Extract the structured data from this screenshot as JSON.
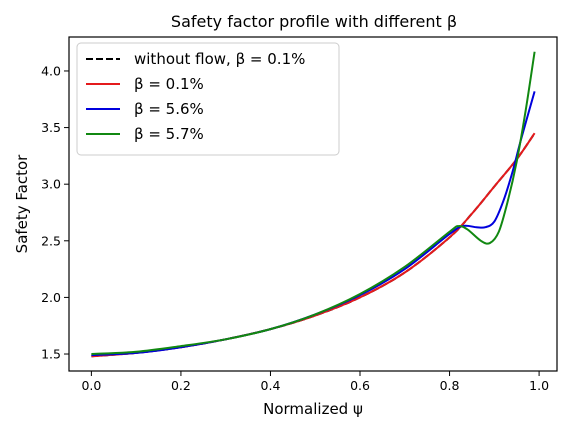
{
  "chart_data": {
    "type": "line",
    "title": "Safety factor profile with different β",
    "xlabel": "Normalized ψ",
    "ylabel": "Safety Factor",
    "xlim": [
      -0.05,
      1.04
    ],
    "ylim": [
      1.35,
      4.3
    ],
    "xticks": [
      0.0,
      0.2,
      0.4,
      0.6,
      0.8,
      1.0
    ],
    "xtick_labels": [
      "0.0",
      "0.2",
      "0.4",
      "0.6",
      "0.8",
      "1.0"
    ],
    "yticks": [
      1.5,
      2.0,
      2.5,
      3.0,
      3.5,
      4.0
    ],
    "ytick_labels": [
      "1.5",
      "2.0",
      "2.5",
      "3.0",
      "3.5",
      "4.0"
    ],
    "grid": false,
    "legend_position": "top-left",
    "series": [
      {
        "name": "without flow, β = 0.1%",
        "color": "#000000",
        "style": "dashed",
        "x": [
          0.0,
          0.1,
          0.2,
          0.3,
          0.4,
          0.5,
          0.6,
          0.7,
          0.8,
          0.85,
          0.9,
          0.95,
          0.99
        ],
        "y": [
          1.48,
          1.51,
          1.56,
          1.63,
          1.72,
          1.84,
          2.0,
          2.22,
          2.53,
          2.74,
          2.98,
          3.22,
          3.45
        ]
      },
      {
        "name": "β = 0.1%",
        "color": "#e41a1c",
        "style": "solid",
        "x": [
          0.0,
          0.1,
          0.2,
          0.3,
          0.4,
          0.5,
          0.6,
          0.7,
          0.8,
          0.85,
          0.9,
          0.95,
          0.99
        ],
        "y": [
          1.48,
          1.51,
          1.56,
          1.63,
          1.72,
          1.84,
          2.0,
          2.22,
          2.53,
          2.74,
          2.98,
          3.22,
          3.45
        ]
      },
      {
        "name": "β = 5.6%",
        "color": "#0000dd",
        "style": "solid",
        "x": [
          0.0,
          0.1,
          0.2,
          0.3,
          0.4,
          0.5,
          0.6,
          0.7,
          0.8,
          0.83,
          0.86,
          0.88,
          0.9,
          0.92,
          0.94,
          0.96,
          0.99
        ],
        "y": [
          1.49,
          1.51,
          1.56,
          1.63,
          1.72,
          1.85,
          2.02,
          2.25,
          2.56,
          2.63,
          2.62,
          2.62,
          2.67,
          2.85,
          3.1,
          3.4,
          3.82
        ]
      },
      {
        "name": "β = 5.7%",
        "color": "#118811",
        "style": "solid",
        "x": [
          0.0,
          0.1,
          0.2,
          0.3,
          0.4,
          0.5,
          0.6,
          0.7,
          0.8,
          0.82,
          0.84,
          0.87,
          0.89,
          0.91,
          0.93,
          0.95,
          0.97,
          0.99
        ],
        "y": [
          1.5,
          1.52,
          1.57,
          1.63,
          1.72,
          1.85,
          2.03,
          2.27,
          2.58,
          2.63,
          2.6,
          2.5,
          2.48,
          2.58,
          2.85,
          3.2,
          3.65,
          4.17
        ]
      }
    ]
  }
}
